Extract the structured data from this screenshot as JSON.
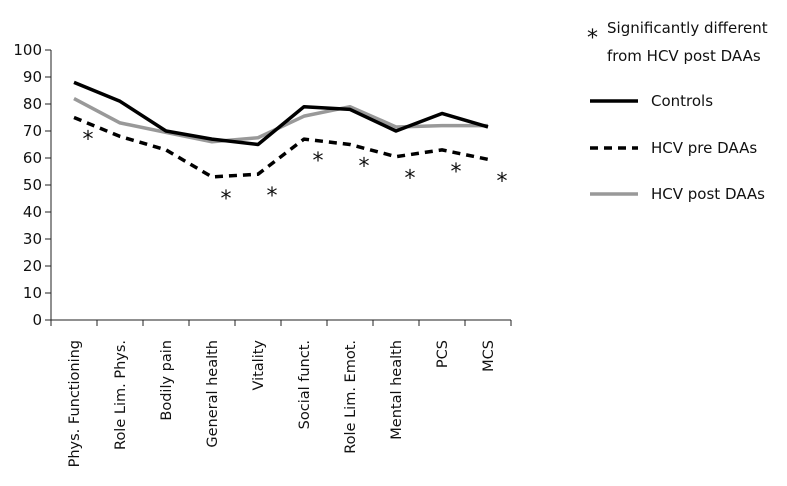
{
  "chart_data": {
    "type": "line",
    "categories": [
      "Phys. Functioning",
      "Role Lim. Phys.",
      "Bodily pain",
      "General health",
      "Vitality",
      "Social funct.",
      "Role Lim. Emot.",
      "Mental health",
      "PCS",
      "MCS"
    ],
    "ylim": [
      0,
      100
    ],
    "yticks": [
      "0",
      "10",
      "20",
      "30",
      "40",
      "50",
      "60",
      "70",
      "80",
      "90",
      "100"
    ],
    "series": [
      {
        "name": "Controls",
        "values": [
          88,
          81,
          70,
          67,
          65,
          79,
          78,
          70,
          76.5,
          71.5
        ],
        "color": "#000000",
        "style": "solid"
      },
      {
        "name": "HCV pre DAAs",
        "values": [
          75,
          68,
          63,
          53,
          54,
          67,
          65,
          60.5,
          63,
          59.5
        ],
        "color": "#000000",
        "style": "dashed"
      },
      {
        "name": "HCV post DAAs",
        "values": [
          82,
          73,
          69.5,
          66,
          67.5,
          75.5,
          79,
          71.5,
          72,
          72
        ],
        "color": "#999999",
        "style": "solid"
      }
    ],
    "significance_marker": "*",
    "significance_note": "Significantly different from HCV post DAAs",
    "significance_note_lines": [
      "Significantly different",
      "from HCV post DAAs"
    ],
    "significant_categories": [
      "Phys. Functioning",
      "General health",
      "Vitality",
      "Social funct.",
      "Role Lim. Emot.",
      "Mental health",
      "PCS",
      "MCS"
    ],
    "grid": false,
    "legend_position": "right"
  }
}
